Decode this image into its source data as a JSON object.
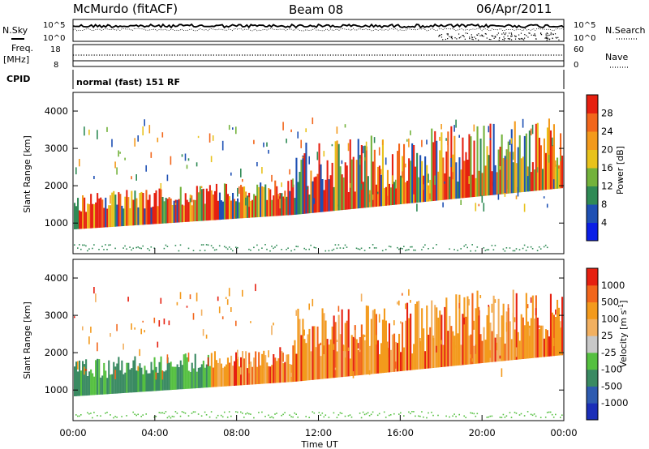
{
  "header": {
    "station": "McMurdo (fitACF)",
    "beam": "Beam 08",
    "date": "06/Apr/2011"
  },
  "noise_panel": {
    "left_label": "N.Sky",
    "right_label": "N.Search",
    "right_legend_style": "dotted",
    "left_ticks": [
      "10^5",
      "10^0"
    ],
    "right_ticks": [
      "10^5",
      "10^0"
    ]
  },
  "freq_panel": {
    "left_label_1": "Freq.",
    "left_label_2": "[MHz]",
    "right_label": "Nave",
    "right_legend_style": "dotted",
    "left_ticks": [
      "18",
      "8"
    ],
    "right_ticks": [
      "60",
      "0"
    ]
  },
  "cpid_panel": {
    "label": "CPID",
    "mode_text": "normal (fast) 151 RF"
  },
  "chart_data": [
    {
      "type": "heatmap",
      "title": "",
      "ylabel": "Slant Range [km]",
      "ylim": [
        180,
        4500
      ],
      "yticks": [
        "1000",
        "2000",
        "3000",
        "4000"
      ],
      "colorbar_label": "Power [dB]",
      "colorbar_ticks": [
        "28",
        "24",
        "20",
        "16",
        "12",
        "8",
        "4"
      ],
      "colorbar_colors": [
        "#0a1ee6",
        "#1e50b4",
        "#2f8a55",
        "#73b23b",
        "#e8c21c",
        "#f39a1c",
        "#f2661b",
        "#e62010"
      ]
    },
    {
      "type": "heatmap",
      "title": "",
      "ylabel": "Slant Range [km]",
      "ylim": [
        180,
        4500
      ],
      "yticks": [
        "1000",
        "2000",
        "3000",
        "4000"
      ],
      "colorbar_label": "Velocity [m s",
      "colorbar_label_sup": "-1",
      "colorbar_label_end": "]",
      "colorbar_ticks": [
        "1000",
        "500",
        "100",
        "25",
        "-25",
        "-100",
        "-500",
        "-1000"
      ],
      "colorbar_colors": [
        "#1a2eb8",
        "#2e5bb0",
        "#3a8a62",
        "#55c040",
        "#c8c8c8",
        "#f2b060",
        "#f39a1c",
        "#f2661b",
        "#e62010"
      ]
    }
  ],
  "x_axis": {
    "label": "Time UT",
    "ticks": [
      "00:00",
      "04:00",
      "08:00",
      "12:00",
      "16:00",
      "20:00",
      "00:00"
    ]
  },
  "colors": {
    "power_main": "#e62010",
    "velocity_green": "#3a8a62",
    "velocity_orange": "#f39a1c"
  }
}
